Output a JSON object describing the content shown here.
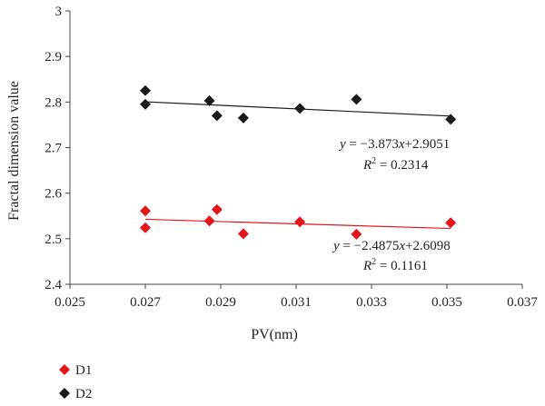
{
  "chart_data": {
    "type": "scatter",
    "xlabel": "PV(nm)",
    "ylabel": "Fractal dimension value",
    "xlim": [
      0.025,
      0.037
    ],
    "ylim": [
      2.4,
      3.0
    ],
    "x_ticks": [
      "0.025",
      "0.027",
      "0.029",
      "0.031",
      "0.033",
      "0.035",
      "0.037"
    ],
    "y_ticks": [
      "2.4",
      "2.5",
      "2.6",
      "2.7",
      "2.8",
      "2.9",
      "3"
    ],
    "x_tick_values": [
      0.025,
      0.027,
      0.029,
      0.031,
      0.033,
      0.035,
      0.037
    ],
    "y_tick_values": [
      2.4,
      2.5,
      2.6,
      2.7,
      2.8,
      2.9,
      3.0
    ],
    "grid": false,
    "legend_position": "bottom-left",
    "series": [
      {
        "name": "D1",
        "color": "#e8141b",
        "marker": "diamond",
        "points": [
          [
            0.027,
            2.561
          ],
          [
            0.027,
            2.524
          ],
          [
            0.0287,
            2.539
          ],
          [
            0.0289,
            2.564
          ],
          [
            0.0296,
            2.511
          ],
          [
            0.0311,
            2.537
          ],
          [
            0.0326,
            2.51
          ],
          [
            0.0351,
            2.535
          ]
        ],
        "trendline": {
          "slope": -2.4875,
          "intercept": 2.6098,
          "x_range": [
            0.027,
            0.0351
          ]
        },
        "equation": "y = −2.4875x+2.6098",
        "r2": "R2 = 0.1161"
      },
      {
        "name": "D2",
        "color": "#1a1a1a",
        "marker": "diamond",
        "points": [
          [
            0.027,
            2.825
          ],
          [
            0.027,
            2.795
          ],
          [
            0.0287,
            2.803
          ],
          [
            0.0289,
            2.77
          ],
          [
            0.0296,
            2.765
          ],
          [
            0.0311,
            2.786
          ],
          [
            0.0326,
            2.806
          ],
          [
            0.0351,
            2.762
          ]
        ],
        "trendline": {
          "slope": -3.873,
          "intercept": 2.9051,
          "x_range": [
            0.027,
            0.0351
          ]
        },
        "equation": "y = −3.873x+2.9051",
        "r2": "R2 = 0.2314"
      }
    ],
    "legend": [
      "D1",
      "D2"
    ]
  }
}
